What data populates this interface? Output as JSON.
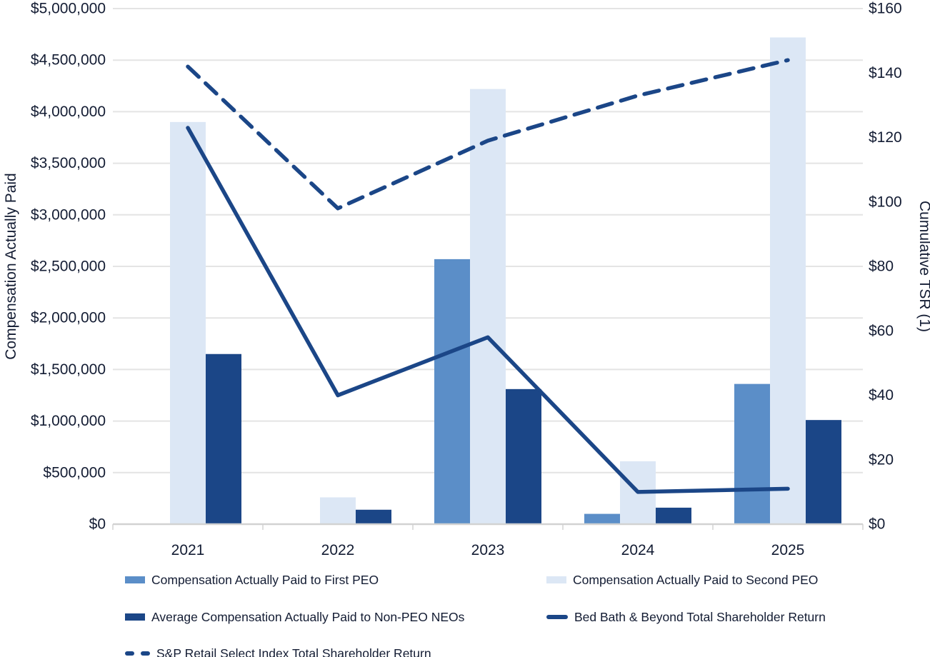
{
  "chart_data": {
    "type": "bar",
    "subtype": "combo-bar-line-dual-axis",
    "title": "",
    "categories": [
      "2021",
      "2022",
      "2023",
      "2024",
      "2025"
    ],
    "left_axis": {
      "label": "Compensation Actually Paid",
      "min": 0,
      "max": 5000000,
      "step": 500000,
      "ticks": [
        "$0",
        "$500,000",
        "$1,000,000",
        "$1,500,000",
        "$2,000,000",
        "$2,500,000",
        "$3,000,000",
        "$3,500,000",
        "$4,000,000",
        "$4,500,000",
        "$5,000,000"
      ]
    },
    "right_axis": {
      "label": "Cumulative TSR (1)",
      "min": 0,
      "max": 160,
      "step": 20,
      "ticks": [
        "$0",
        "$20",
        "$40",
        "$60",
        "$80",
        "$100",
        "$120",
        "$140",
        "$160"
      ]
    },
    "grid": "horizontal-on",
    "legend_position": "bottom",
    "bar_series": [
      {
        "name": "Compensation Actually Paid to First PEO",
        "color": "#5b8ec8",
        "axis": "left",
        "values": [
          null,
          null,
          2570000,
          100000,
          1360000
        ]
      },
      {
        "name": "Compensation Actually Paid to Second PEO",
        "color": "#dce7f5",
        "axis": "left",
        "values": [
          3900000,
          260000,
          4220000,
          610000,
          4720000
        ]
      },
      {
        "name": "Average Compensation Actually Paid to Non-PEO NEOs",
        "color": "#1b4687",
        "axis": "left",
        "values": [
          1650000,
          140000,
          1310000,
          160000,
          1010000
        ]
      }
    ],
    "line_series": [
      {
        "name": "Bed Bath & Beyond Total Shareholder Return",
        "color": "#1b4687",
        "style": "solid",
        "axis": "right",
        "values": [
          123,
          40,
          58,
          10,
          11
        ]
      },
      {
        "name": "S&P Retail Select Index Total Shareholder Return",
        "color": "#1b4687",
        "style": "dashed",
        "axis": "right",
        "values": [
          142,
          98,
          119,
          133,
          144
        ]
      }
    ],
    "colors": {
      "grid_line": "#e4e4e4",
      "axis_line": "#d2d2d2",
      "text": "#131c33"
    }
  }
}
